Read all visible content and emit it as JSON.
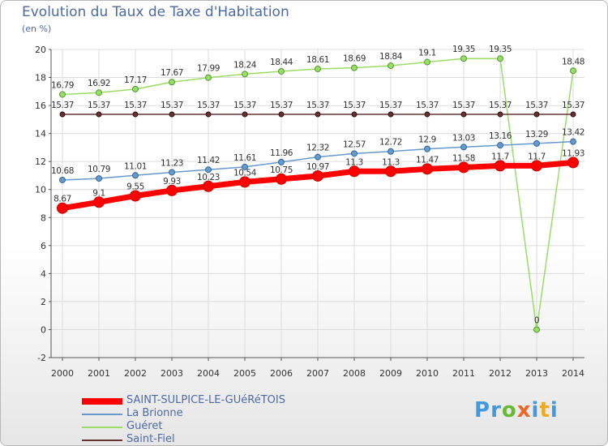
{
  "chart_data": {
    "type": "line",
    "title": "Evolution du Taux de Taxe d'Habitation",
    "ylabel": "(en %)",
    "xlabel": "",
    "ylim": [
      -2,
      20
    ],
    "yticks": [
      -2,
      0,
      2,
      4,
      6,
      8,
      10,
      12,
      14,
      16,
      18,
      20
    ],
    "grid": true,
    "categories": [
      "2000",
      "2001",
      "2002",
      "2003",
      "2004",
      "2005",
      "2006",
      "2007",
      "2008",
      "2009",
      "2010",
      "2011",
      "2012",
      "2013",
      "2014"
    ],
    "series": [
      {
        "name": "SAINT-SULPICE-LE-GUéRéTOIS",
        "color": "#ff0000",
        "values": [
          8.67,
          9.1,
          9.55,
          9.93,
          10.23,
          10.54,
          10.75,
          10.97,
          11.3,
          11.3,
          11.47,
          11.58,
          11.7,
          11.7,
          11.93
        ],
        "labels": [
          "8.67",
          "9.1",
          "9.55",
          "9.93",
          "10.23",
          "10.54",
          "10.75",
          "10.97",
          "11.3",
          "11.3",
          "11.47",
          "11.58",
          "11.7",
          "11.7",
          "11.93"
        ]
      },
      {
        "name": "La Brionne",
        "color": "#6699cc",
        "values": [
          10.68,
          10.79,
          11.01,
          11.23,
          11.42,
          11.61,
          11.96,
          12.32,
          12.57,
          12.72,
          12.9,
          13.03,
          13.16,
          13.29,
          13.42
        ],
        "labels": [
          "10.68",
          "10.79",
          "11.01",
          "11.23",
          "11.42",
          "11.61",
          "11.96",
          "12.32",
          "12.57",
          "12.72",
          "12.9",
          "13.03",
          "13.16",
          "13.29",
          "13.42"
        ]
      },
      {
        "name": "Guéret",
        "color": "#99dd66",
        "values": [
          16.79,
          16.92,
          17.17,
          17.67,
          17.99,
          18.24,
          18.44,
          18.61,
          18.69,
          18.84,
          19.1,
          19.35,
          19.35,
          0,
          18.48
        ],
        "labels": [
          "16.79",
          "16.92",
          "17.17",
          "17.67",
          "17.99",
          "18.24",
          "18.44",
          "18.61",
          "18.69",
          "18.84",
          "19.1",
          "19.35",
          "19.35",
          "0",
          "18.48"
        ]
      },
      {
        "name": "Saint-Fiel",
        "color": "#663333",
        "values": [
          15.37,
          15.37,
          15.37,
          15.37,
          15.37,
          15.37,
          15.37,
          15.37,
          15.37,
          15.37,
          15.37,
          15.37,
          15.37,
          15.37,
          15.37
        ],
        "labels": [
          "15.37",
          "15.37",
          "15.37",
          "15.37",
          "15.37",
          "15.37",
          "15.37",
          "15.37",
          "15.37",
          "15.37",
          "15.37",
          "15.37",
          "15.37",
          "15.37",
          "15.37"
        ]
      }
    ]
  },
  "brand": {
    "text": "Proxiti",
    "letters": [
      {
        "ch": "P",
        "color": "#4499dd"
      },
      {
        "ch": "r",
        "color": "#4499dd"
      },
      {
        "ch": "o",
        "color": "#66bb33"
      },
      {
        "ch": "x",
        "color": "#ee6622"
      },
      {
        "ch": "i",
        "color": "#4499dd"
      },
      {
        "ch": "t",
        "color": "#eeaa22"
      },
      {
        "ch": "i",
        "color": "#4499dd"
      }
    ]
  }
}
